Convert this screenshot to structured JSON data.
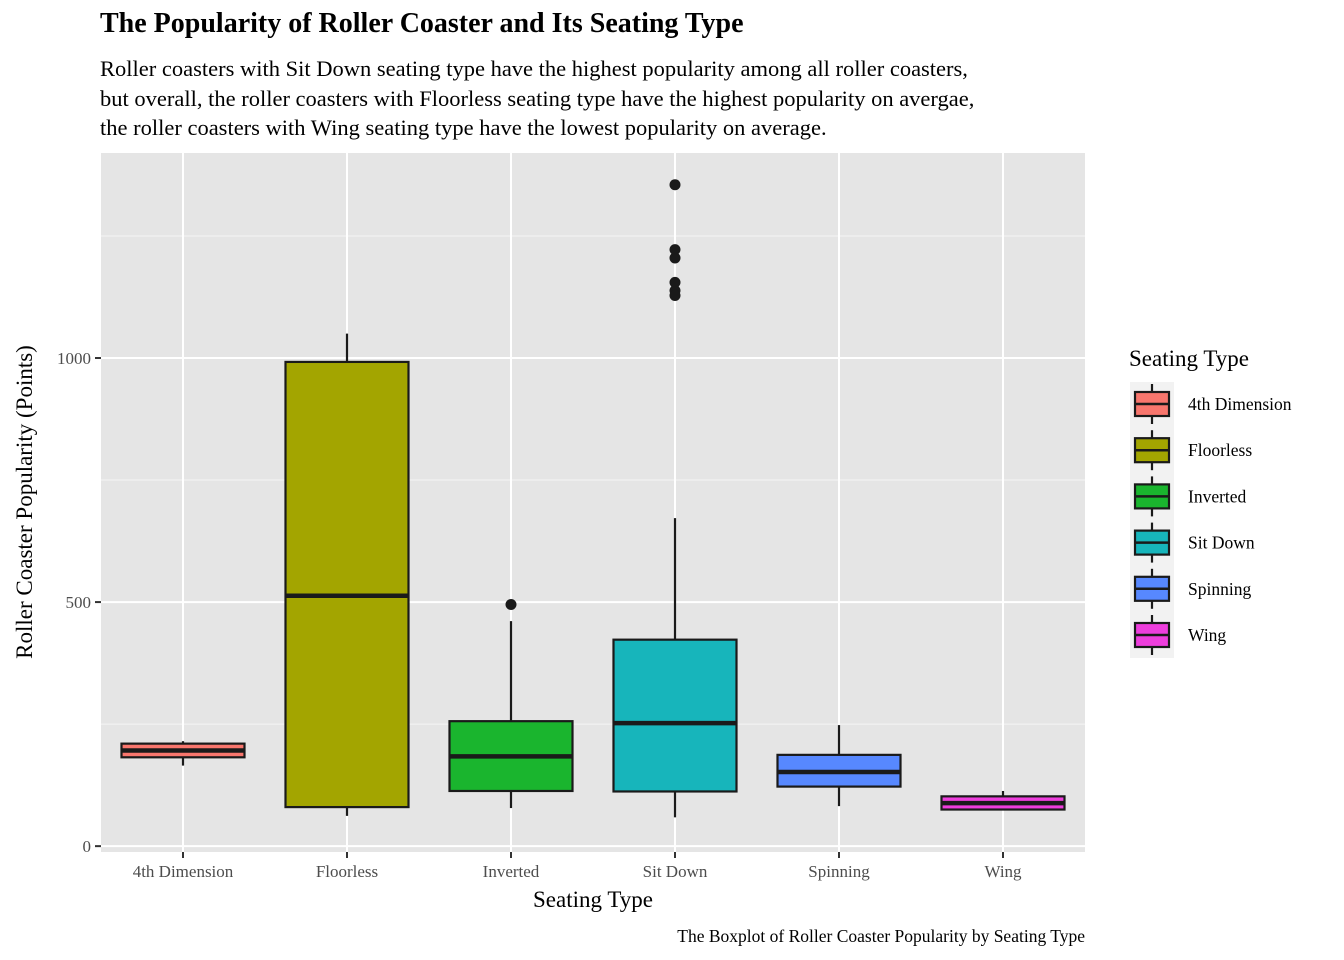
{
  "chart_data": {
    "type": "boxplot",
    "title": "The Popularity of Roller Coaster and Its Seating Type",
    "subtitle": [
      "Roller coasters with Sit Down seating type have the highest popularity among all roller coasters,",
      "but overall, the roller coasters with Floorless seating type have the highest popularity on avergae,",
      "the roller coasters with Wing seating type have the lowest popularity on average."
    ],
    "xlabel": "Seating Type",
    "ylabel": "Roller Coaster Popularity (Points)",
    "caption": "The Boxplot of Roller Coaster Popularity by Seating Type",
    "ylim": [
      -12,
      1420
    ],
    "yticks": [
      0,
      500,
      1000
    ],
    "grid": true,
    "legend": {
      "title": "Seating Type",
      "placement": "right"
    },
    "categories": [
      "4th Dimension",
      "Floorless",
      "Inverted",
      "Sit Down",
      "Spinning",
      "Wing"
    ],
    "boxes": [
      {
        "name": "4th Dimension",
        "color": "#F8766D",
        "min": 165,
        "q1": 182,
        "median": 196,
        "q3": 210,
        "max": 215,
        "outliers": []
      },
      {
        "name": "Floorless",
        "color": "#A3A500",
        "min": 62,
        "q1": 80,
        "median": 513,
        "q3": 992,
        "max": 1050,
        "outliers": []
      },
      {
        "name": "Inverted",
        "color": "#1AB52E",
        "min": 78,
        "q1": 113,
        "median": 184,
        "q3": 256,
        "max": 461,
        "outliers": [
          495
        ]
      },
      {
        "name": "Sit Down",
        "color": "#17B5BB",
        "min": 59,
        "q1": 112,
        "median": 252,
        "q3": 423,
        "max": 672,
        "outliers": [
          1355,
          1222,
          1205,
          1155,
          1138,
          1128
        ]
      },
      {
        "name": "Spinning",
        "color": "#5788FF",
        "min": 82,
        "q1": 122,
        "median": 152,
        "q3": 187,
        "max": 248,
        "outliers": []
      },
      {
        "name": "Wing",
        "color": "#EE3EDD",
        "min": 73,
        "q1": 75,
        "median": 88,
        "q3": 102,
        "max": 113,
        "outliers": []
      }
    ]
  }
}
